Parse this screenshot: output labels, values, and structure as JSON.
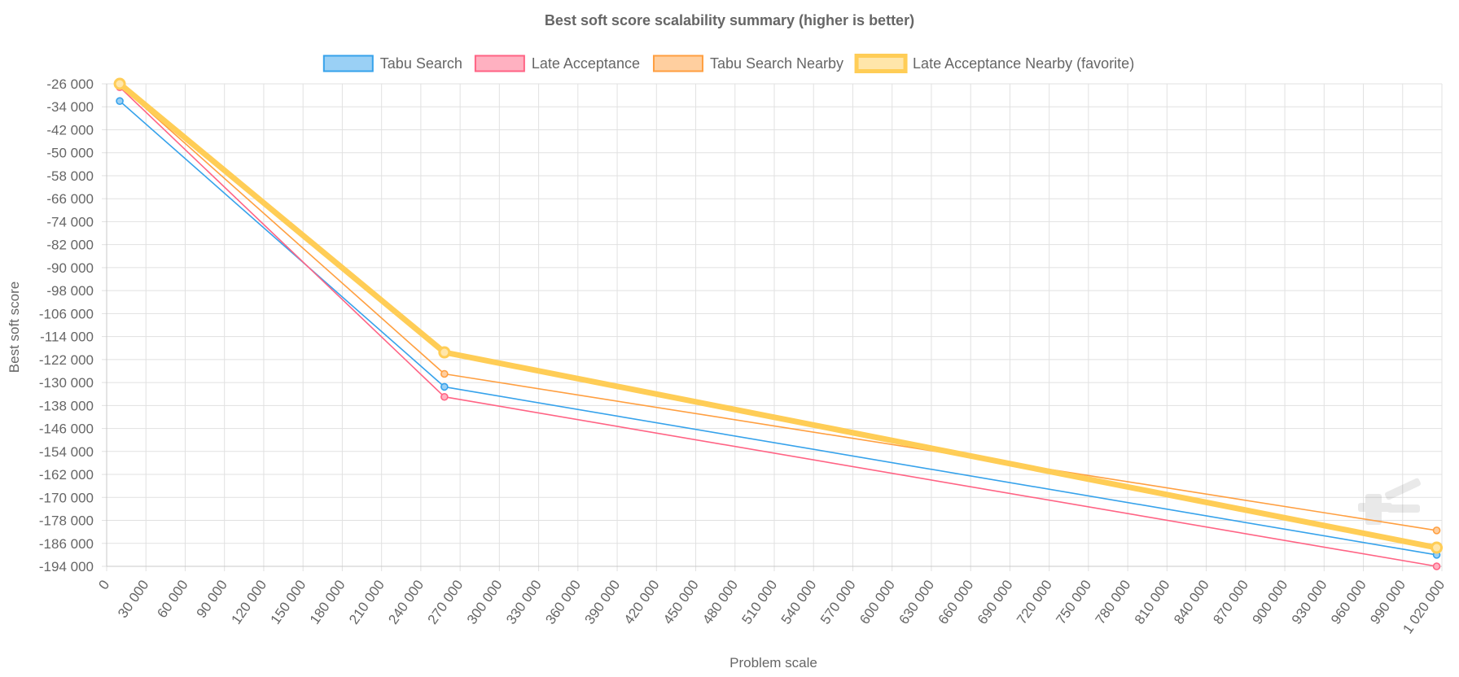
{
  "chart_data": {
    "type": "line",
    "title": "Best soft score scalability summary (higher is better)",
    "xlabel": "Problem scale",
    "ylabel": "Best soft score",
    "xlim": [
      0,
      1020000
    ],
    "ylim": [
      -194000,
      -26000
    ],
    "x_step": 30000,
    "y_step": 8000,
    "grid": true,
    "legend_position": "top",
    "x_tick_labels": [
      "0",
      "30 000",
      "60 000",
      "90 000",
      "120 000",
      "150 000",
      "180 000",
      "210 000",
      "240 000",
      "270 000",
      "300 000",
      "330 000",
      "360 000",
      "390 000",
      "420 000",
      "450 000",
      "480 000",
      "510 000",
      "540 000",
      "570 000",
      "600 000",
      "630 000",
      "660 000",
      "690 000",
      "720 000",
      "750 000",
      "780 000",
      "810 000",
      "840 000",
      "870 000",
      "900 000",
      "930 000",
      "960 000",
      "990 000",
      "1 020 000"
    ],
    "y_tick_labels": [
      "-26 000",
      "-34 000",
      "-42 000",
      "-50 000",
      "-58 000",
      "-66 000",
      "-74 000",
      "-82 000",
      "-90 000",
      "-98 000",
      "-106 000",
      "-114 000",
      "-122 000",
      "-130 000",
      "-138 000",
      "-146 000",
      "-154 000",
      "-162 000",
      "-170 000",
      "-178 000",
      "-186 000",
      "-194 000"
    ],
    "series": [
      {
        "name": "Tabu Search",
        "color": "#36a2eb",
        "fill": "#9ad0f5",
        "highlight": false,
        "x": [
          10000,
          258000,
          1016000
        ],
        "y": [
          -32000,
          -131500,
          -190000
        ]
      },
      {
        "name": "Late Acceptance",
        "color": "#ff6384",
        "fill": "#ffb1c1",
        "highlight": false,
        "x": [
          10000,
          258000,
          1016000
        ],
        "y": [
          -27200,
          -135000,
          -194000
        ]
      },
      {
        "name": "Tabu Search Nearby",
        "color": "#ff9f40",
        "fill": "#ffcf9f",
        "highlight": false,
        "x": [
          10000,
          258000,
          1016000
        ],
        "y": [
          -26500,
          -127000,
          -181500
        ]
      },
      {
        "name": "Late Acceptance Nearby (favorite)",
        "color": "#ffcd56",
        "fill": "#ffe6aa",
        "highlight": true,
        "x": [
          10000,
          258000,
          1016000
        ],
        "y": [
          -26000,
          -119500,
          -187500
        ]
      }
    ]
  }
}
